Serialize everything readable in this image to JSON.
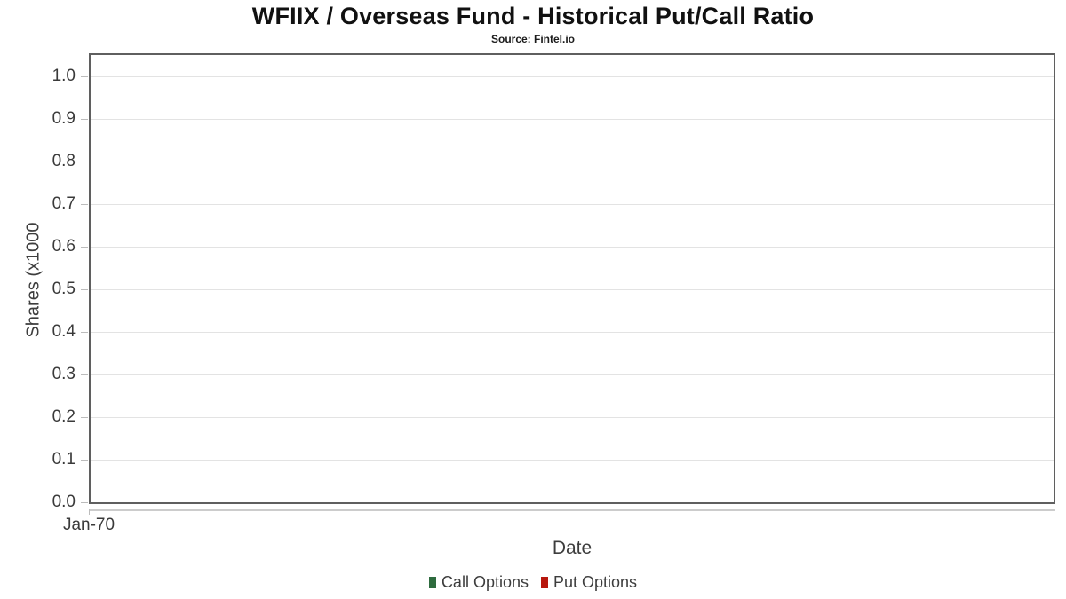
{
  "header": {
    "title": "WFIIX / Overseas Fund - Historical Put/Call Ratio",
    "subtitle": "Source: Fintel.io"
  },
  "chart_data": {
    "type": "line",
    "title": "WFIIX / Overseas Fund - Historical Put/Call Ratio",
    "subtitle": "Source: Fintel.io",
    "xlabel": "Date",
    "ylabel": "Shares (x1000",
    "x_ticks": [
      "Jan-70"
    ],
    "y_ticks": [
      0.0,
      0.1,
      0.2,
      0.3,
      0.4,
      0.5,
      0.6,
      0.7,
      0.8,
      0.9,
      1.0
    ],
    "ylim": [
      0,
      1.05
    ],
    "grid": "horizontal-only",
    "legend_position": "bottom-center",
    "legend": [
      {
        "label": "Call Options",
        "color": "#2e6b3e"
      },
      {
        "label": "Put Options",
        "color": "#b7170e"
      }
    ],
    "series": [
      {
        "name": "Call Options",
        "x": [],
        "values": []
      },
      {
        "name": "Put Options",
        "x": [],
        "values": []
      }
    ],
    "note": "no data plotted - empty chart panel"
  },
  "colors": {
    "plot_border": "#5f5f5f",
    "gridline": "#e3e3e3",
    "tick": "#bcbcbc",
    "axis_text": "#3a3a3a",
    "call_green": "#2e6b3e",
    "put_red": "#b7170e"
  }
}
